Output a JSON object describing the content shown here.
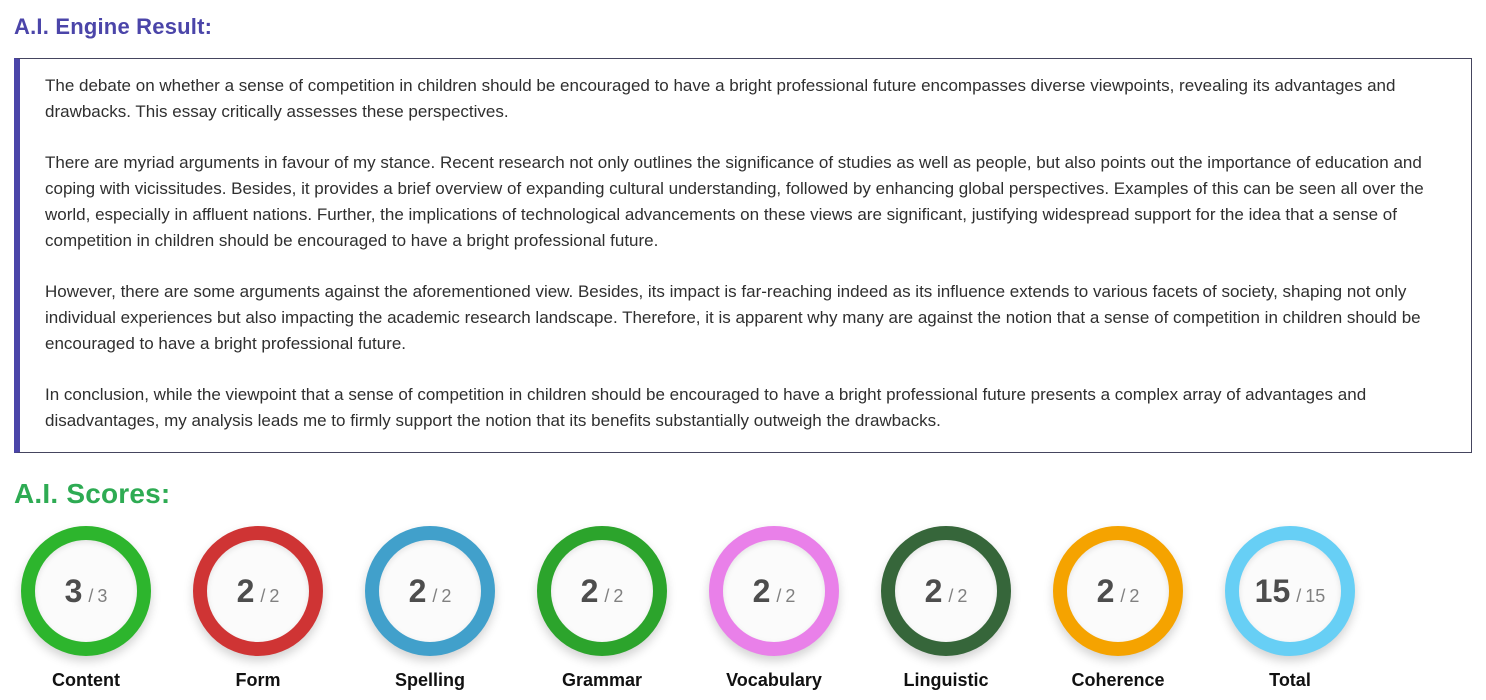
{
  "engine_result": {
    "title": "A.I. Engine Result:",
    "title_color": "#4b45a9",
    "accent_border_color": "#4b45a9",
    "paragraphs": [
      "The debate on whether a sense of competition in children should be encouraged to have a bright professional future encompasses diverse viewpoints, revealing its advantages and drawbacks. This essay critically assesses these perspectives.",
      "There are myriad arguments in favour of my stance. Recent research not only outlines the significance of studies as well as people, but also points out the importance of education and coping with vicissitudes. Besides, it provides a brief overview of expanding cultural understanding, followed by enhancing global perspectives. Examples of this can be seen all over the world, especially in affluent nations. Further, the implications of technological advancements on these views are significant, justifying widespread support for the idea that a sense of competition in children should be encouraged to have a bright professional future.",
      "However, there are some arguments against the aforementioned view. Besides, its impact is far-reaching indeed as its influence extends to various facets of society, shaping not only individual experiences but also impacting the academic research landscape. Therefore, it is apparent why many are against the notion that a sense of competition in children should be encouraged to have a bright professional future.",
      "In conclusion, while the viewpoint that a sense of competition in children should be encouraged to have a bright professional future presents a complex array of advantages and disadvantages, my analysis leads me to firmly support the notion that its benefits substantially outweigh the drawbacks."
    ]
  },
  "scores": {
    "title": "A.I. Scores:",
    "title_color": "#2eab53",
    "separator": "/",
    "items": [
      {
        "label": "Content",
        "value": "3",
        "max": "3",
        "color": "#2db52d"
      },
      {
        "label": "Form",
        "value": "2",
        "max": "2",
        "color": "#cf3434"
      },
      {
        "label": "Spelling",
        "value": "2",
        "max": "2",
        "color": "#41a0cb"
      },
      {
        "label": "Grammar",
        "value": "2",
        "max": "2",
        "color": "#2ca42c"
      },
      {
        "label": "Vocabulary",
        "value": "2",
        "max": "2",
        "color": "#e980e9"
      },
      {
        "label": "Linguistic",
        "value": "2",
        "max": "2",
        "color": "#36663a"
      },
      {
        "label": "Coherence",
        "value": "2",
        "max": "2",
        "color": "#f5a300"
      },
      {
        "label": "Total",
        "value": "15",
        "max": "15",
        "color": "#67cff5"
      }
    ]
  }
}
